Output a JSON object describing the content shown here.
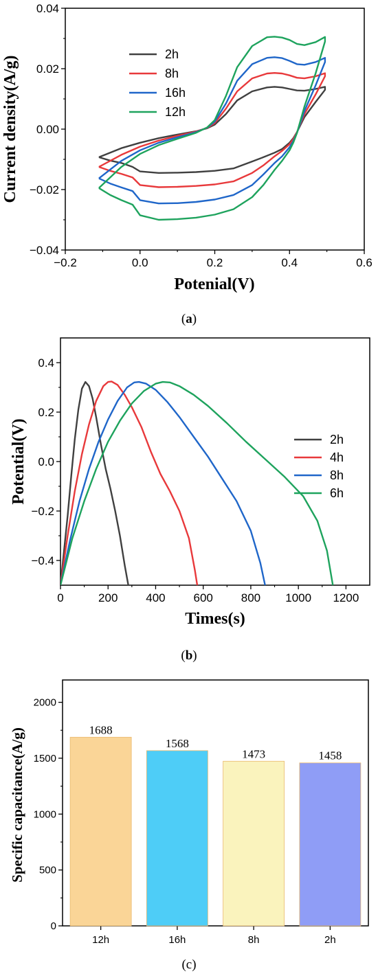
{
  "chart_data": [
    {
      "type": "line",
      "xlabel": "Potenial(V)",
      "ylabel": "Current density(A/g)",
      "xlim": [
        -0.2,
        0.6
      ],
      "ylim": [
        -0.04,
        0.04
      ],
      "xticks": [
        "-0.2",
        "0.0",
        "0.2",
        "0.4",
        "0.6"
      ],
      "yticks": [
        "-0.04",
        "-0.02",
        "0.00",
        "0.02",
        "0.04"
      ],
      "legend": "upper-left",
      "caption": "a",
      "series": [
        {
          "name": "2h",
          "color": "#404040",
          "x": [
            -0.11,
            -0.08,
            -0.05,
            -0.02,
            0.0,
            0.05,
            0.1,
            0.15,
            0.2,
            0.25,
            0.3,
            0.33,
            0.36,
            0.38,
            0.4,
            0.41,
            0.42,
            0.44,
            0.47,
            0.495,
            0.495,
            0.47,
            0.44,
            0.42,
            0.4,
            0.38,
            0.36,
            0.34,
            0.3,
            0.26,
            0.23,
            0.2,
            0.18,
            0.15,
            0.1,
            0.05,
            0.0,
            -0.05,
            -0.11
          ],
          "y": [
            -0.0093,
            -0.0104,
            -0.0112,
            -0.0125,
            -0.014,
            -0.0145,
            -0.0144,
            -0.0142,
            -0.0138,
            -0.013,
            -0.0107,
            -0.0093,
            -0.0078,
            -0.0066,
            -0.0045,
            -0.003,
            -0.001,
            0.004,
            0.009,
            0.013,
            0.014,
            0.0133,
            0.0127,
            0.0128,
            0.0133,
            0.0138,
            0.014,
            0.0138,
            0.0125,
            0.0095,
            0.005,
            0.0015,
            0.0003,
            -0.0007,
            -0.0018,
            -0.003,
            -0.0045,
            -0.0063,
            -0.0093
          ]
        },
        {
          "name": "8h",
          "color": "#e8393b",
          "x": [
            -0.11,
            -0.08,
            -0.05,
            -0.02,
            0.0,
            0.05,
            0.1,
            0.15,
            0.2,
            0.25,
            0.3,
            0.33,
            0.36,
            0.38,
            0.4,
            0.41,
            0.42,
            0.44,
            0.47,
            0.495,
            0.495,
            0.47,
            0.44,
            0.42,
            0.4,
            0.38,
            0.36,
            0.34,
            0.3,
            0.26,
            0.23,
            0.2,
            0.18,
            0.15,
            0.1,
            0.05,
            0.0,
            -0.05,
            -0.11
          ],
          "y": [
            -0.0125,
            -0.0138,
            -0.0148,
            -0.016,
            -0.0185,
            -0.0192,
            -0.0191,
            -0.0188,
            -0.0183,
            -0.0173,
            -0.0145,
            -0.012,
            -0.009,
            -0.0072,
            -0.005,
            -0.0033,
            -0.001,
            0.005,
            0.0115,
            0.0175,
            0.0185,
            0.0175,
            0.0168,
            0.017,
            0.0178,
            0.0184,
            0.0186,
            0.0184,
            0.0168,
            0.0125,
            0.0068,
            0.002,
            0.0004,
            -0.0008,
            -0.0022,
            -0.0038,
            -0.0058,
            -0.0085,
            -0.0125
          ]
        },
        {
          "name": "16h",
          "color": "#1f66c9",
          "x": [
            -0.11,
            -0.08,
            -0.05,
            -0.02,
            0.0,
            0.05,
            0.1,
            0.15,
            0.2,
            0.25,
            0.3,
            0.33,
            0.36,
            0.38,
            0.4,
            0.41,
            0.42,
            0.44,
            0.47,
            0.495,
            0.495,
            0.47,
            0.44,
            0.42,
            0.4,
            0.38,
            0.36,
            0.34,
            0.3,
            0.26,
            0.23,
            0.2,
            0.18,
            0.15,
            0.1,
            0.05,
            0.0,
            -0.05,
            -0.11
          ],
          "y": [
            -0.0163,
            -0.018,
            -0.0193,
            -0.0205,
            -0.0235,
            -0.0246,
            -0.0245,
            -0.0241,
            -0.0233,
            -0.0218,
            -0.0185,
            -0.015,
            -0.0112,
            -0.009,
            -0.006,
            -0.004,
            -0.0012,
            0.006,
            0.0145,
            0.0222,
            0.0236,
            0.0222,
            0.0213,
            0.0215,
            0.0226,
            0.0235,
            0.0238,
            0.0236,
            0.0215,
            0.016,
            0.0085,
            0.0025,
            0.0005,
            -0.001,
            -0.0027,
            -0.0045,
            -0.007,
            -0.0105,
            -0.0163
          ]
        },
        {
          "name": "12h",
          "color": "#1ea35d",
          "x": [
            -0.11,
            -0.08,
            -0.05,
            -0.02,
            0.0,
            0.05,
            0.1,
            0.15,
            0.2,
            0.25,
            0.3,
            0.33,
            0.36,
            0.38,
            0.4,
            0.41,
            0.42,
            0.44,
            0.47,
            0.495,
            0.495,
            0.47,
            0.44,
            0.42,
            0.4,
            0.38,
            0.36,
            0.34,
            0.3,
            0.26,
            0.23,
            0.2,
            0.18,
            0.15,
            0.1,
            0.05,
            0.0,
            -0.05,
            -0.11
          ],
          "y": [
            -0.0195,
            -0.0218,
            -0.0235,
            -0.025,
            -0.0285,
            -0.03,
            -0.0298,
            -0.0293,
            -0.0283,
            -0.0265,
            -0.0225,
            -0.0185,
            -0.0135,
            -0.0105,
            -0.007,
            -0.0045,
            -0.0013,
            0.0075,
            0.0185,
            0.029,
            0.0305,
            0.0288,
            0.0278,
            0.0282,
            0.0295,
            0.0303,
            0.0306,
            0.0304,
            0.0275,
            0.0205,
            0.011,
            0.003,
            0.0006,
            -0.0012,
            -0.0032,
            -0.0053,
            -0.0082,
            -0.0125,
            -0.0195
          ]
        }
      ]
    },
    {
      "type": "line",
      "xlabel": "Times(s)",
      "ylabel": "Potential(V)",
      "xlim": [
        0,
        1300
      ],
      "ylim": [
        -0.5,
        0.5
      ],
      "xticks": [
        "0",
        "200",
        "400",
        "600",
        "800",
        "1000",
        "1200"
      ],
      "yticks": [
        "-0.4",
        "-0.2",
        "0.0",
        "0.2",
        "0.4"
      ],
      "legend": "right",
      "caption": "b",
      "series": [
        {
          "name": "2h",
          "color": "#404040",
          "x": [
            0,
            15,
            30,
            45,
            60,
            75,
            90,
            105,
            120,
            135,
            150,
            170,
            190,
            210,
            230,
            250,
            270,
            285
          ],
          "y": [
            -0.5,
            -0.36,
            -0.22,
            -0.06,
            0.09,
            0.21,
            0.295,
            0.322,
            0.305,
            0.255,
            0.18,
            0.07,
            -0.03,
            -0.11,
            -0.2,
            -0.3,
            -0.42,
            -0.5
          ]
        },
        {
          "name": "4h",
          "color": "#e8393b",
          "x": [
            0,
            30,
            60,
            90,
            120,
            150,
            180,
            200,
            215,
            240,
            270,
            300,
            340,
            380,
            420,
            460,
            500,
            540,
            565,
            575
          ],
          "y": [
            -0.5,
            -0.3,
            -0.12,
            0.03,
            0.15,
            0.245,
            0.305,
            0.322,
            0.324,
            0.31,
            0.27,
            0.22,
            0.14,
            0.04,
            -0.05,
            -0.12,
            -0.2,
            -0.31,
            -0.44,
            -0.5
          ]
        },
        {
          "name": "8h",
          "color": "#1f66c9",
          "x": [
            0,
            40,
            80,
            120,
            160,
            200,
            240,
            280,
            310,
            330,
            360,
            400,
            450,
            500,
            560,
            620,
            680,
            740,
            800,
            840,
            860
          ],
          "y": [
            -0.5,
            -0.32,
            -0.16,
            -0.03,
            0.08,
            0.17,
            0.245,
            0.3,
            0.32,
            0.322,
            0.315,
            0.29,
            0.24,
            0.18,
            0.1,
            0.02,
            -0.07,
            -0.16,
            -0.28,
            -0.41,
            -0.5
          ]
        },
        {
          "name": "6h",
          "color": "#1ea35d",
          "x": [
            0,
            50,
            100,
            150,
            200,
            250,
            300,
            350,
            400,
            430,
            460,
            500,
            560,
            620,
            700,
            780,
            860,
            940,
            1020,
            1080,
            1120,
            1145
          ],
          "y": [
            -0.5,
            -0.31,
            -0.16,
            -0.03,
            0.08,
            0.165,
            0.235,
            0.285,
            0.315,
            0.322,
            0.32,
            0.305,
            0.27,
            0.225,
            0.155,
            0.08,
            0.01,
            -0.06,
            -0.14,
            -0.24,
            -0.36,
            -0.5
          ]
        }
      ]
    },
    {
      "type": "bar",
      "ylabel": "Specific capacitance(A/g)",
      "ylim": [
        0,
        2200
      ],
      "yticks": [
        "0",
        "500",
        "1000",
        "1500",
        "2000"
      ],
      "categories": [
        "12h",
        "16h",
        "8h",
        "2h"
      ],
      "values": [
        1688,
        1568,
        1473,
        1458
      ],
      "value_labels": [
        "1688",
        "1568",
        "1473",
        "1458"
      ],
      "colors": [
        "#fad597",
        "#4ecdf7",
        "#faf3bd",
        "#8f9df6"
      ],
      "caption": "c"
    }
  ]
}
